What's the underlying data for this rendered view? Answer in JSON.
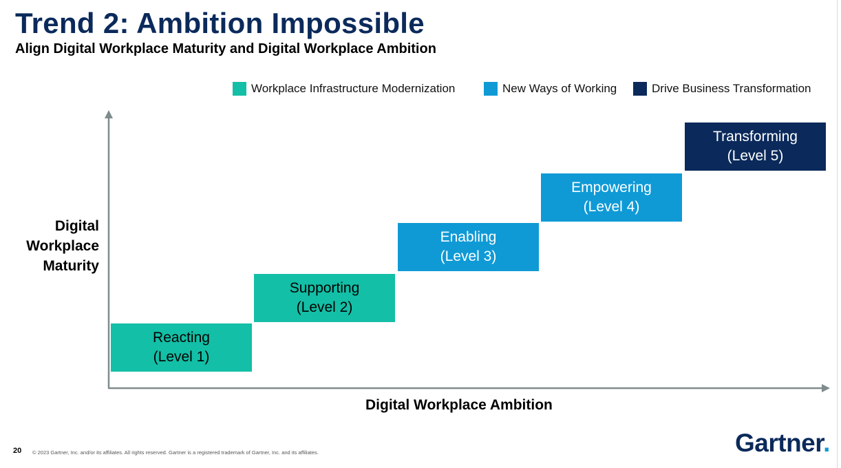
{
  "title": "Trend 2: Ambition Impossible",
  "subtitle": "Align Digital Workplace Maturity and Digital Workplace Ambition",
  "legend": [
    {
      "label": "Workplace Infrastructure Modernization",
      "color": "#13bfa6"
    },
    {
      "label": "New Ways of Working",
      "color": "#0f9ad6"
    },
    {
      "label": "Drive Business Transformation",
      "color": "#0b2a5b"
    }
  ],
  "axes": {
    "y_label_lines": [
      "Digital",
      "Workplace",
      "Maturity"
    ],
    "x_label": "Digital Workplace Ambition"
  },
  "steps": [
    {
      "name": "Reacting",
      "level": "(Level 1)",
      "color": "#13bfa6"
    },
    {
      "name": "Supporting",
      "level": "(Level 2)",
      "color": "#13bfa6"
    },
    {
      "name": "Enabling",
      "level": "(Level 3)",
      "color": "#0f9ad6"
    },
    {
      "name": "Empowering",
      "level": "(Level 4)",
      "color": "#0f9ad6"
    },
    {
      "name": "Transforming",
      "level": "(Level 5)",
      "color": "#0b2a5b"
    }
  ],
  "footer": {
    "page_number": "20",
    "copyright": "© 2023 Gartner, Inc. and/or its affiliates. All rights reserved. Gartner is a registered trademark of Gartner, Inc. and its affiliates."
  },
  "logo": {
    "text": "Gartner",
    "dot": "."
  }
}
